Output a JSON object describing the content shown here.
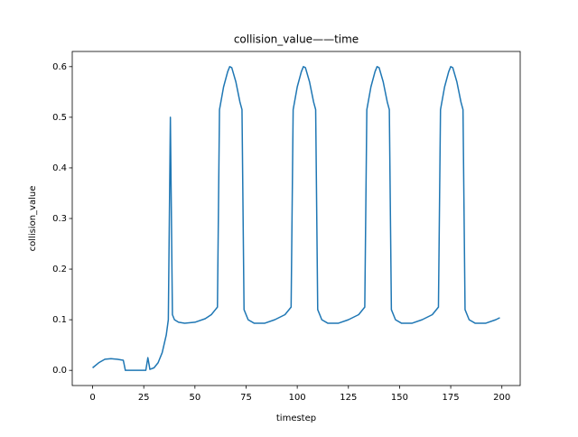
{
  "chart_data": {
    "type": "line",
    "title": "collision_value——time",
    "x_label": "timestep",
    "y_label": "collision_value",
    "x": [
      0,
      3,
      6,
      9,
      12,
      15,
      16,
      20,
      26,
      27,
      28,
      30,
      32,
      34,
      36,
      37,
      38,
      39,
      40,
      42,
      45,
      50,
      55,
      58,
      60,
      61,
      62,
      64,
      66,
      67,
      68,
      70,
      72,
      73,
      74,
      76,
      79,
      84,
      89,
      94,
      97,
      98,
      100,
      102,
      103,
      104,
      106,
      108,
      109,
      110,
      112,
      115,
      120,
      125,
      130,
      133,
      134,
      136,
      138,
      139,
      140,
      142,
      144,
      145,
      146,
      148,
      151,
      156,
      161,
      166,
      169,
      170,
      172,
      174,
      175,
      176,
      178,
      180,
      181,
      182,
      184,
      187,
      192,
      197,
      199
    ],
    "series": [
      {
        "name": "collision_value",
        "color": "#1f77b4",
        "values": [
          0.005,
          0.015,
          0.022,
          0.023,
          0.022,
          0.02,
          0.0,
          0.0,
          0.0,
          0.025,
          0.002,
          0.005,
          0.015,
          0.035,
          0.07,
          0.1,
          0.5,
          0.11,
          0.1,
          0.095,
          0.093,
          0.095,
          0.102,
          0.11,
          0.12,
          0.125,
          0.515,
          0.56,
          0.59,
          0.6,
          0.598,
          0.57,
          0.53,
          0.515,
          0.12,
          0.1,
          0.093,
          0.093,
          0.1,
          0.11,
          0.125,
          0.515,
          0.56,
          0.59,
          0.6,
          0.598,
          0.57,
          0.53,
          0.515,
          0.12,
          0.1,
          0.093,
          0.093,
          0.1,
          0.11,
          0.125,
          0.515,
          0.56,
          0.59,
          0.6,
          0.598,
          0.57,
          0.53,
          0.515,
          0.12,
          0.1,
          0.093,
          0.093,
          0.1,
          0.11,
          0.125,
          0.515,
          0.56,
          0.59,
          0.6,
          0.598,
          0.57,
          0.53,
          0.515,
          0.12,
          0.1,
          0.093,
          0.093,
          0.1,
          0.104
        ]
      }
    ],
    "xlim": [
      -9.95,
      208.95
    ],
    "ylim": [
      -0.03,
      0.63
    ],
    "xticks": [
      0,
      25,
      50,
      75,
      100,
      125,
      150,
      175,
      200
    ],
    "yticks": [
      {
        "value": 0,
        "label": "0.0"
      },
      0.1,
      0.2,
      0.3,
      0.4,
      0.5,
      0.6
    ]
  }
}
